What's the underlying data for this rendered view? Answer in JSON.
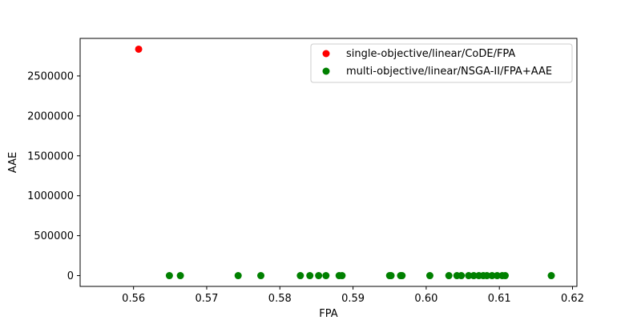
{
  "chart_data": {
    "type": "scatter",
    "title": "",
    "xlabel": "FPA",
    "ylabel": "AAE",
    "xlim": [
      0.5527,
      0.6206
    ],
    "ylim": [
      -135000,
      2970000
    ],
    "xticks": [
      0.56,
      0.57,
      0.58,
      0.59,
      0.6,
      0.61,
      0.62
    ],
    "xtick_labels": [
      "0.56",
      "0.57",
      "0.58",
      "0.59",
      "0.60",
      "0.61",
      "0.62"
    ],
    "yticks": [
      0,
      500000,
      1000000,
      1500000,
      2000000,
      2500000
    ],
    "ytick_labels": [
      "0",
      "500000",
      "1000000",
      "1500000",
      "2000000",
      "2500000"
    ],
    "grid": false,
    "legend": "upper-right",
    "series": [
      {
        "name": "single-objective/linear/CoDE/FPA",
        "color": "#ff0000",
        "points": [
          [
            0.5607,
            2835000
          ]
        ]
      },
      {
        "name": "multi-objective/linear/NSGA-II/FPA+AAE",
        "color": "#008000",
        "points": [
          [
            0.5649,
            0
          ],
          [
            0.5664,
            0
          ],
          [
            0.5743,
            0
          ],
          [
            0.5774,
            0
          ],
          [
            0.5828,
            0
          ],
          [
            0.5841,
            0
          ],
          [
            0.5853,
            0
          ],
          [
            0.5863,
            0
          ],
          [
            0.5881,
            0
          ],
          [
            0.5885,
            0
          ],
          [
            0.595,
            0
          ],
          [
            0.5952,
            0
          ],
          [
            0.5965,
            0
          ],
          [
            0.5967,
            0
          ],
          [
            0.6005,
            0
          ],
          [
            0.6031,
            0
          ],
          [
            0.6042,
            0
          ],
          [
            0.6048,
            0
          ],
          [
            0.6058,
            0
          ],
          [
            0.6065,
            0
          ],
          [
            0.6072,
            0
          ],
          [
            0.6078,
            0
          ],
          [
            0.6083,
            0
          ],
          [
            0.609,
            0
          ],
          [
            0.6097,
            0
          ],
          [
            0.6104,
            0
          ],
          [
            0.6108,
            0
          ],
          [
            0.6171,
            0
          ]
        ]
      }
    ]
  }
}
